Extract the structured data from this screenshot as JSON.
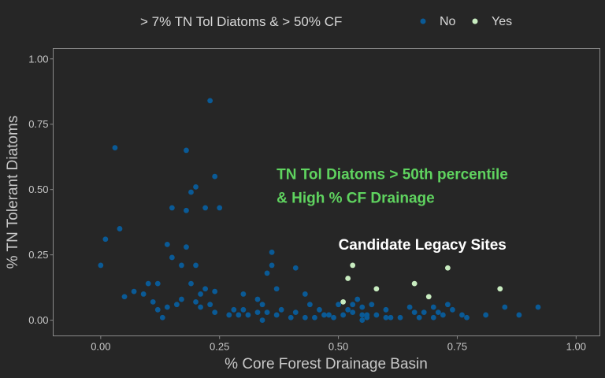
{
  "chart_data": {
    "type": "scatter",
    "xlabel": "% Core Forest Drainage Basin",
    "ylabel": "% TN Tolerant Diatoms",
    "xlim": [
      -0.1,
      1.05
    ],
    "ylim": [
      -0.06,
      1.04
    ],
    "xticks": [
      "0.00",
      "0.25",
      "0.50",
      "0.75",
      "1.00"
    ],
    "yticks": [
      "0.00",
      "0.25",
      "0.50",
      "0.75",
      "1.00"
    ],
    "grid": false,
    "legend": {
      "title": "> 7% TN Tol Diatoms & > 50% CF",
      "placement": "top"
    },
    "annotations": [
      {
        "text": "TN Tol Diatoms > 50th percentile",
        "x": 0.37,
        "y": 0.54,
        "color": "#5fd35f"
      },
      {
        "text": "& High % CF Drainage",
        "x": 0.37,
        "y": 0.45,
        "color": "#5fd35f"
      },
      {
        "text": "Candidate Legacy Sites",
        "x": 0.5,
        "y": 0.27,
        "color": "#ffffff"
      }
    ],
    "series": [
      {
        "name": "No",
        "color": "#0a5a96",
        "points": [
          [
            0.0,
            0.21
          ],
          [
            0.01,
            0.31
          ],
          [
            0.03,
            0.66
          ],
          [
            0.04,
            0.35
          ],
          [
            0.05,
            0.09
          ],
          [
            0.07,
            0.11
          ],
          [
            0.09,
            0.1
          ],
          [
            0.1,
            0.14
          ],
          [
            0.11,
            0.07
          ],
          [
            0.12,
            0.14
          ],
          [
            0.12,
            0.04
          ],
          [
            0.13,
            0.01
          ],
          [
            0.14,
            0.29
          ],
          [
            0.14,
            0.05
          ],
          [
            0.15,
            0.43
          ],
          [
            0.15,
            0.24
          ],
          [
            0.16,
            0.06
          ],
          [
            0.17,
            0.21
          ],
          [
            0.17,
            0.08
          ],
          [
            0.18,
            0.65
          ],
          [
            0.18,
            0.42
          ],
          [
            0.18,
            0.28
          ],
          [
            0.19,
            0.49
          ],
          [
            0.19,
            0.14
          ],
          [
            0.2,
            0.51
          ],
          [
            0.2,
            0.21
          ],
          [
            0.2,
            0.07
          ],
          [
            0.21,
            0.1
          ],
          [
            0.21,
            0.05
          ],
          [
            0.22,
            0.43
          ],
          [
            0.22,
            0.12
          ],
          [
            0.23,
            0.84
          ],
          [
            0.23,
            0.06
          ],
          [
            0.24,
            0.55
          ],
          [
            0.24,
            0.11
          ],
          [
            0.24,
            0.03
          ],
          [
            0.25,
            0.43
          ],
          [
            0.27,
            0.02
          ],
          [
            0.28,
            0.04
          ],
          [
            0.29,
            0.02
          ],
          [
            0.3,
            0.04
          ],
          [
            0.3,
            0.1
          ],
          [
            0.31,
            0.02
          ],
          [
            0.33,
            0.03
          ],
          [
            0.33,
            0.08
          ],
          [
            0.34,
            0.06
          ],
          [
            0.34,
            0.0
          ],
          [
            0.35,
            0.18
          ],
          [
            0.35,
            0.03
          ],
          [
            0.36,
            0.21
          ],
          [
            0.36,
            0.26
          ],
          [
            0.37,
            0.12
          ],
          [
            0.37,
            0.02
          ],
          [
            0.38,
            0.04
          ],
          [
            0.4,
            0.01
          ],
          [
            0.41,
            0.2
          ],
          [
            0.41,
            0.03
          ],
          [
            0.43,
            0.01
          ],
          [
            0.43,
            0.1
          ],
          [
            0.44,
            0.06
          ],
          [
            0.45,
            0.01
          ],
          [
            0.46,
            0.04
          ],
          [
            0.47,
            0.02
          ],
          [
            0.48,
            0.02
          ],
          [
            0.49,
            0.01
          ],
          [
            0.5,
            0.06
          ],
          [
            0.51,
            0.02
          ],
          [
            0.52,
            0.04
          ],
          [
            0.53,
            0.03
          ],
          [
            0.53,
            0.06
          ],
          [
            0.54,
            0.08
          ],
          [
            0.55,
            0.02
          ],
          [
            0.55,
            0.05
          ],
          [
            0.55,
            0.0
          ],
          [
            0.56,
            0.02
          ],
          [
            0.56,
            0.01
          ],
          [
            0.57,
            0.06
          ],
          [
            0.58,
            0.02
          ],
          [
            0.6,
            0.01
          ],
          [
            0.6,
            0.04
          ],
          [
            0.61,
            0.01
          ],
          [
            0.63,
            0.01
          ],
          [
            0.65,
            0.05
          ],
          [
            0.66,
            0.03
          ],
          [
            0.67,
            0.01
          ],
          [
            0.68,
            0.03
          ],
          [
            0.7,
            0.01
          ],
          [
            0.7,
            0.05
          ],
          [
            0.71,
            0.03
          ],
          [
            0.72,
            0.02
          ],
          [
            0.73,
            0.06
          ],
          [
            0.74,
            0.04
          ],
          [
            0.76,
            0.02
          ],
          [
            0.77,
            0.01
          ],
          [
            0.81,
            0.02
          ],
          [
            0.85,
            0.05
          ],
          [
            0.88,
            0.02
          ],
          [
            0.92,
            0.05
          ]
        ]
      },
      {
        "name": "Yes",
        "color": "#c8ecc0",
        "points": [
          [
            0.51,
            0.07
          ],
          [
            0.52,
            0.16
          ],
          [
            0.53,
            0.21
          ],
          [
            0.58,
            0.12
          ],
          [
            0.66,
            0.14
          ],
          [
            0.69,
            0.09
          ],
          [
            0.73,
            0.2
          ],
          [
            0.84,
            0.12
          ]
        ]
      }
    ]
  }
}
